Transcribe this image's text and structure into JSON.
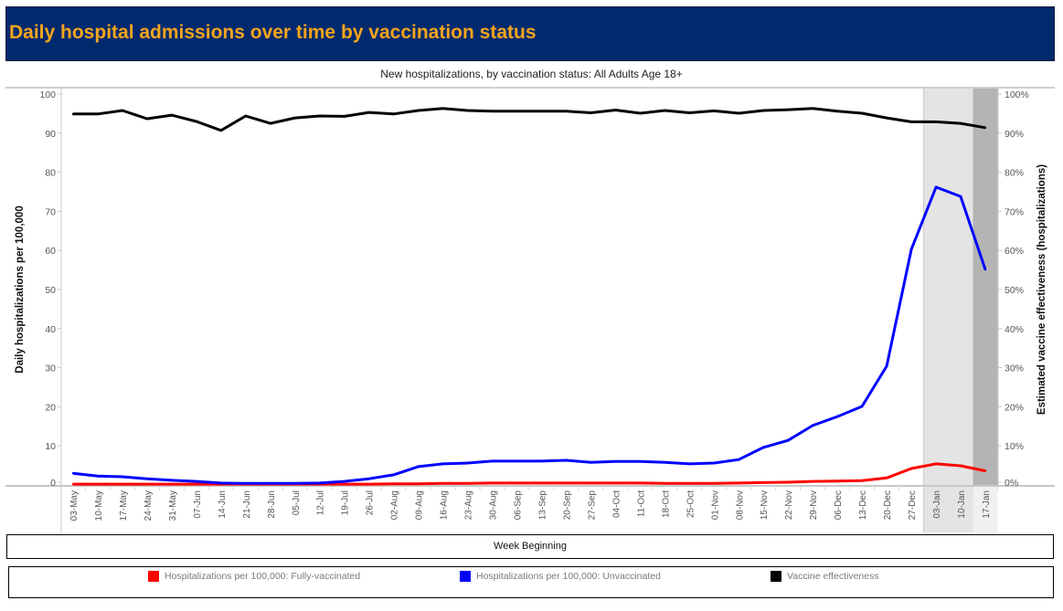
{
  "header": {
    "title": "Daily hospital admissions over time by vaccination status"
  },
  "chart_data": {
    "type": "line",
    "title": "New hospitalizations, by vaccination status: All Adults Age 18+",
    "xlabel": "Week Beginning",
    "ylabel": "Daily hospitalizations per 100,000",
    "y2label": "Estimated vaccine effectiveness (hospitalizations)",
    "ylim": [
      0,
      100
    ],
    "y2lim": [
      0,
      100
    ],
    "yticks": [
      "0",
      "10",
      "20",
      "30",
      "40",
      "50",
      "60",
      "70",
      "80",
      "90",
      "100"
    ],
    "y2ticks": [
      "0%",
      "10%",
      "20%",
      "30%",
      "40%",
      "50%",
      "60%",
      "70%",
      "80%",
      "90%",
      "100%"
    ],
    "categories": [
      "03-May",
      "10-May",
      "17-May",
      "24-May",
      "31-May",
      "07-Jun",
      "14-Jun",
      "21-Jun",
      "28-Jun",
      "05-Jul",
      "12-Jul",
      "19-Jul",
      "26-Jul",
      "02-Aug",
      "09-Aug",
      "16-Aug",
      "23-Aug",
      "30-Aug",
      "06-Sep",
      "13-Sep",
      "20-Sep",
      "27-Sep",
      "04-Oct",
      "11-Oct",
      "18-Oct",
      "25-Oct",
      "01-Nov",
      "08-Nov",
      "15-Nov",
      "22-Nov",
      "29-Nov",
      "06-Dec",
      "13-Dec",
      "20-Dec",
      "27-Dec",
      "03-Jan",
      "10-Jan",
      "17-Jan"
    ],
    "shaded_light": [
      "03-Jan",
      "10-Jan"
    ],
    "shaded_dark": [
      "17-Jan"
    ],
    "grid": false,
    "legend_position": "bottom",
    "series": [
      {
        "name": "Hospitalizations per 100,000: Fully-vaccinated",
        "axis": "left",
        "color": "#ff0000",
        "values": [
          0.2,
          0.2,
          0.2,
          0.2,
          0.2,
          0.2,
          0.2,
          0.2,
          0.2,
          0.2,
          0.2,
          0.2,
          0.2,
          0.3,
          0.3,
          0.4,
          0.4,
          0.5,
          0.5,
          0.5,
          0.5,
          0.5,
          0.5,
          0.5,
          0.4,
          0.4,
          0.4,
          0.5,
          0.6,
          0.7,
          0.9,
          1.0,
          1.1,
          1.8,
          4.2,
          5.4,
          4.9,
          3.6
        ]
      },
      {
        "name": "Hospitalizations per 100,000: Unvaccinated",
        "axis": "left",
        "color": "#0000ff",
        "values": [
          3.0,
          2.3,
          2.1,
          1.6,
          1.2,
          0.9,
          0.5,
          0.4,
          0.4,
          0.4,
          0.5,
          0.9,
          1.6,
          2.6,
          4.7,
          5.4,
          5.6,
          6.1,
          6.1,
          6.1,
          6.3,
          5.8,
          6.0,
          6.0,
          5.8,
          5.4,
          5.6,
          6.5,
          9.6,
          11.4,
          15.2,
          17.5,
          20.1,
          30.4,
          60.3,
          76.2,
          73.8,
          55.1
        ]
      },
      {
        "name": "Vaccine effectiveness",
        "axis": "right",
        "color": "#000000",
        "values": [
          94.9,
          94.9,
          95.8,
          93.7,
          94.6,
          93.0,
          90.7,
          94.4,
          92.5,
          93.9,
          94.4,
          94.3,
          95.3,
          94.9,
          95.8,
          96.3,
          95.8,
          95.6,
          95.6,
          95.6,
          95.6,
          95.2,
          95.9,
          95.1,
          95.8,
          95.2,
          95.7,
          95.1,
          95.8,
          96.0,
          96.3,
          95.6,
          95.1,
          93.9,
          92.9,
          92.9,
          92.5,
          91.4
        ]
      }
    ]
  }
}
